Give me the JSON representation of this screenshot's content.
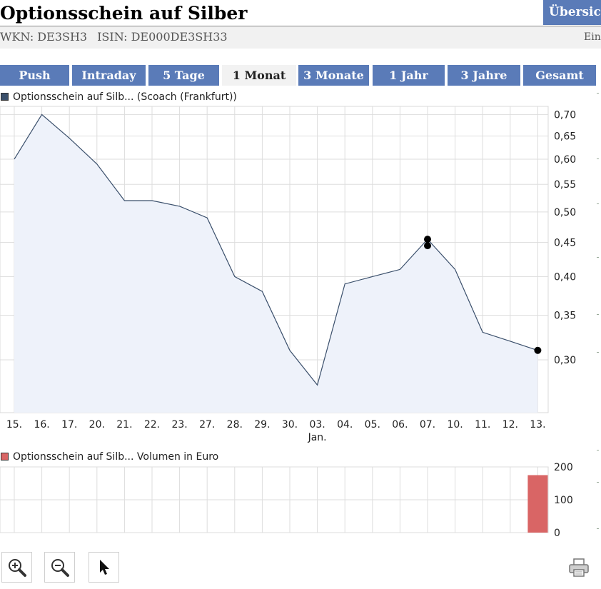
{
  "header": {
    "title": "Optionsschein auf Silber",
    "overview_tab": "Übersicht",
    "wkn": "WKN: DE3SH3",
    "isin": "ISIN: DE000DE3SH33",
    "right_text": "Ein"
  },
  "tabs": [
    {
      "label": "Push",
      "active": false
    },
    {
      "label": "Intraday",
      "active": false
    },
    {
      "label": "5 Tage",
      "active": false
    },
    {
      "label": "1 Monat",
      "active": true
    },
    {
      "label": "3 Monate",
      "active": false
    },
    {
      "label": "1 Jahr",
      "active": false
    },
    {
      "label": "3 Jahre",
      "active": false
    },
    {
      "label": "Gesamt",
      "active": false
    }
  ],
  "colors": {
    "tab_bg": "#5a7bb8",
    "price_line": "#3a4f6b",
    "price_fill": "#eef2fa",
    "volume_bar": "#d96565",
    "grid": "#dddddd"
  },
  "chart_data": [
    {
      "type": "area",
      "legend": "Optionsschein auf Silb... (Scoach (Frankfurt))",
      "categories": [
        "15.",
        "16.",
        "17.",
        "20.",
        "21.",
        "22.",
        "23.",
        "27.",
        "28.",
        "29.",
        "30.",
        "03.",
        "04.",
        "05.",
        "06.",
        "07.",
        "10.",
        "11.",
        "12.",
        "13."
      ],
      "month_label": "Jan.",
      "values": [
        0.6,
        0.7,
        0.645,
        0.59,
        0.52,
        0.52,
        0.51,
        0.49,
        0.4,
        0.38,
        0.31,
        0.275,
        0.39,
        0.4,
        0.41,
        0.455,
        0.41,
        0.33,
        0.32,
        0.31
      ],
      "markers": [
        {
          "index": 15,
          "value": 0.455
        },
        {
          "index": 15,
          "value": 0.445
        },
        {
          "index": 19,
          "value": 0.31
        }
      ],
      "yticks": [
        "0,70",
        "0,65",
        "0,60",
        "0,55",
        "0,50",
        "0,45",
        "0,40",
        "0,35",
        "0,30"
      ],
      "ytick_values": [
        0.7,
        0.65,
        0.6,
        0.55,
        0.5,
        0.45,
        0.4,
        0.35,
        0.3
      ],
      "ylim": [
        0.25,
        0.72
      ],
      "scale": "log"
    },
    {
      "type": "bar",
      "legend": "Optionsschein auf Silb... Volumen in Euro",
      "categories": [
        "15.",
        "16.",
        "17.",
        "20.",
        "21.",
        "22.",
        "23.",
        "27.",
        "28.",
        "29.",
        "30.",
        "03.",
        "04.",
        "05.",
        "06.",
        "07.",
        "10.",
        "11.",
        "12.",
        "13."
      ],
      "values": [
        0,
        0,
        0,
        0,
        0,
        0,
        0,
        0,
        0,
        0,
        0,
        0,
        0,
        0,
        0,
        0,
        0,
        0,
        0,
        175
      ],
      "yticks": [
        "200",
        "100",
        "0"
      ],
      "ytick_values": [
        200,
        100,
        0
      ],
      "ylim": [
        0,
        200
      ]
    }
  ]
}
